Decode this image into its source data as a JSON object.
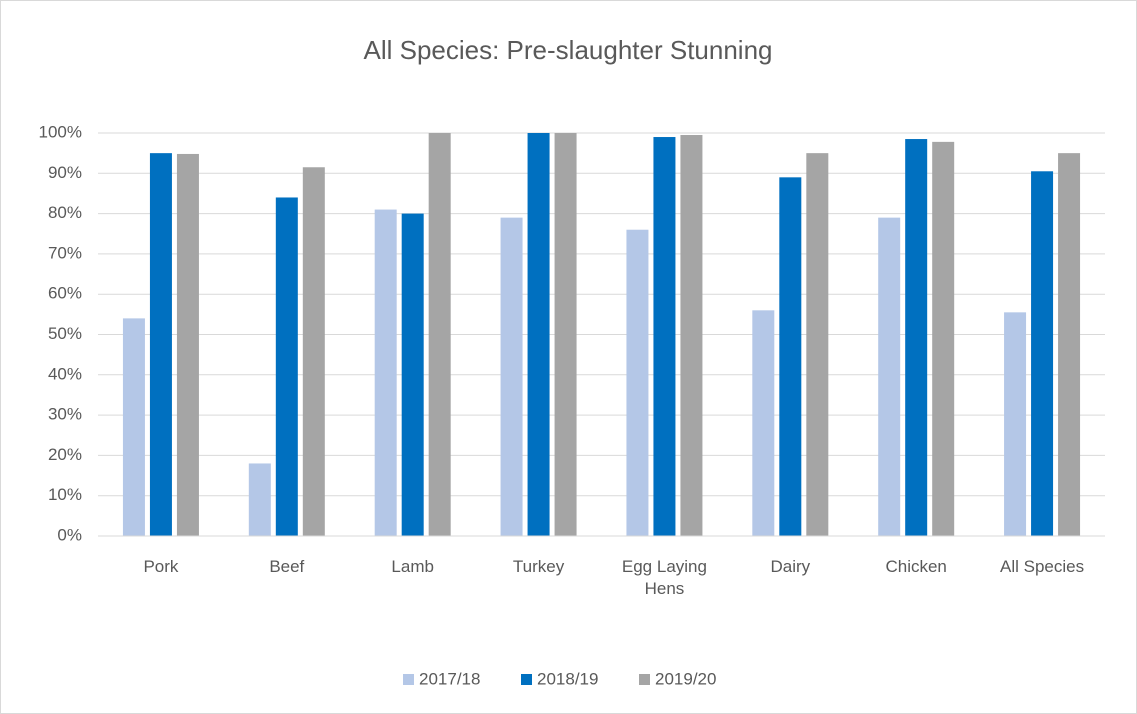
{
  "chart_data": {
    "type": "bar",
    "title": "All Species: Pre-slaughter Stunning",
    "categories": [
      "Pork",
      "Beef",
      "Lamb",
      "Turkey",
      "Egg Laying Hens",
      "Dairy",
      "Chicken",
      "All Species"
    ],
    "series": [
      {
        "name": "2017/18",
        "color": "#b4c7e7",
        "values": [
          54,
          18,
          81,
          79,
          76,
          56,
          79,
          55.5
        ]
      },
      {
        "name": "2018/19",
        "color": "#0070c0",
        "values": [
          95,
          84,
          80,
          100,
          99,
          89,
          98.5,
          90.5
        ]
      },
      {
        "name": "2019/20",
        "color": "#a5a5a5",
        "values": [
          94.8,
          91.5,
          100,
          100,
          99.5,
          95,
          97.8,
          95
        ]
      }
    ],
    "ylim": [
      0,
      100
    ],
    "yticks": [
      {
        "value": 0,
        "label": "0%"
      },
      {
        "value": 10,
        "label": "10%"
      },
      {
        "value": 20,
        "label": "20%"
      },
      {
        "value": 30,
        "label": "30%"
      },
      {
        "value": 40,
        "label": "40%"
      },
      {
        "value": 50,
        "label": "50%"
      },
      {
        "value": 60,
        "label": "60%"
      },
      {
        "value": 70,
        "label": "70%"
      },
      {
        "value": 80,
        "label": "80%"
      },
      {
        "value": 90,
        "label": "90%"
      },
      {
        "value": 100,
        "label": "100%"
      }
    ],
    "grid": true,
    "legend": "bottom"
  }
}
